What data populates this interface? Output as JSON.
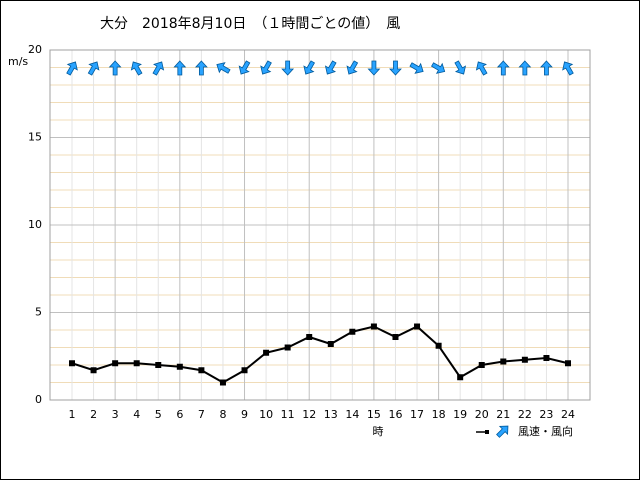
{
  "chart_data": {
    "type": "line",
    "title": "大分　2018年8月10日　（１時間ごとの値）　風",
    "y_label": "m/s",
    "x_label": "時",
    "categories": [
      "1",
      "2",
      "3",
      "4",
      "5",
      "6",
      "7",
      "8",
      "9",
      "10",
      "11",
      "12",
      "13",
      "14",
      "15",
      "16",
      "17",
      "18",
      "19",
      "20",
      "21",
      "22",
      "23",
      "24"
    ],
    "series": [
      {
        "name": "風速・風向",
        "color": "#000000",
        "arrow_color": "#29a3ff",
        "values": [
          2.1,
          1.7,
          2.1,
          2.1,
          2.0,
          1.9,
          1.7,
          1.0,
          1.7,
          2.7,
          3.0,
          3.6,
          3.2,
          3.9,
          4.2,
          3.6,
          4.2,
          3.1,
          1.3,
          2.0,
          2.2,
          2.3,
          2.4,
          2.1
        ],
        "directions": [
          30,
          30,
          0,
          330,
          30,
          0,
          0,
          300,
          210,
          210,
          180,
          210,
          210,
          210,
          180,
          180,
          120,
          120,
          150,
          330,
          0,
          0,
          0,
          330
        ]
      }
    ],
    "ylim": [
      0,
      20
    ],
    "yticks": [
      0,
      5,
      10,
      15,
      20
    ],
    "minor_yticks": [
      1,
      2,
      3,
      4,
      6,
      7,
      8,
      9,
      11,
      12,
      13,
      14,
      16,
      17,
      18,
      19
    ],
    "grid": true
  }
}
